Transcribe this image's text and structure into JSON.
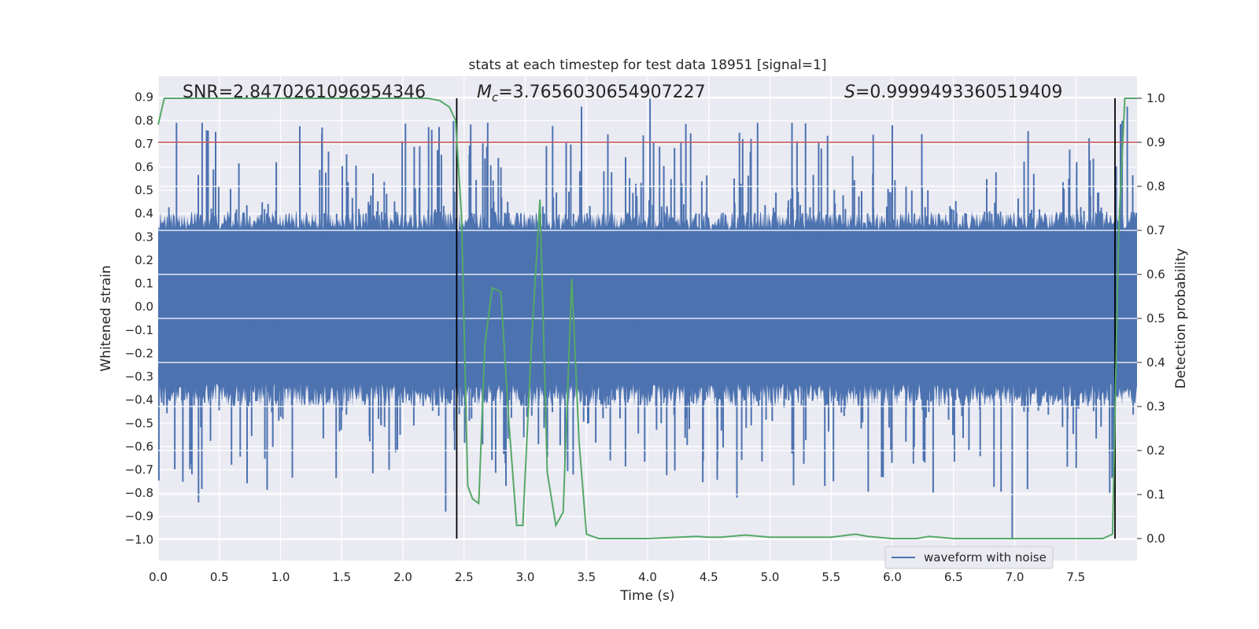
{
  "chart_data": {
    "type": "line",
    "title": "stats at each timestep for test data 18951 [signal=1]",
    "xlabel": "Time (s)",
    "ylabel": "Whitened strain",
    "y2label": "Detection probability",
    "xlim": [
      0,
      8
    ],
    "ylim": [
      -1.09,
      0.99
    ],
    "y2lim": [
      -0.05,
      1.05
    ],
    "grid": true,
    "x_ticks": [
      "0.0",
      "0.5",
      "1.0",
      "1.5",
      "2.0",
      "2.5",
      "3.0",
      "3.5",
      "4.0",
      "4.5",
      "5.0",
      "5.5",
      "6.0",
      "6.5",
      "7.0",
      "7.5"
    ],
    "y_ticks": [
      "0.9",
      "0.8",
      "0.7",
      "0.6",
      "0.5",
      "0.4",
      "0.3",
      "0.2",
      "0.1",
      "0.0",
      "−0.1",
      "−0.2",
      "−0.3",
      "−0.4",
      "−0.5",
      "−0.6",
      "−0.7",
      "−0.8",
      "−0.9",
      "−1.0"
    ],
    "y2_ticks": [
      "0.0",
      "0.1",
      "0.2",
      "0.3",
      "0.4",
      "0.5",
      "0.6",
      "0.7",
      "0.8",
      "0.9",
      "1.0"
    ],
    "annotations": {
      "snr": "SNR=2.8470261096954346",
      "mc_value": "=3.7656030654907227",
      "s_value": "=0.9999493360519409"
    },
    "threshold": {
      "value": 0.9,
      "axis": "right",
      "color": "#c44e52"
    },
    "vlines": [
      2.44,
      7.82
    ],
    "legend": {
      "label": "waveform with noise",
      "location": "bottom-right"
    },
    "colors": {
      "waveform": "#4c72b0",
      "probability": "#55a868",
      "threshold": "#c44e52",
      "vline": "#000000",
      "background": "#eaeaf2"
    },
    "series": [
      {
        "name": "waveform with noise",
        "axis": "left",
        "description": "dense whitened strain noise, approx. uniform amplitude",
        "x_range": [
          0,
          8
        ],
        "y_range": [
          -1.0,
          0.9
        ],
        "typical_band": [
          -0.4,
          0.4
        ],
        "peaks": [
          {
            "x": 0.15,
            "y": 0.79
          },
          {
            "x": 1.34,
            "y": 0.77
          },
          {
            "x": 3.46,
            "y": 0.86
          },
          {
            "x": 4.02,
            "y": 0.9
          },
          {
            "x": 5.18,
            "y": 0.79
          },
          {
            "x": 6.0,
            "y": 0.78
          },
          {
            "x": 7.92,
            "y": 0.86
          }
        ],
        "troughs": [
          {
            "x": 0.33,
            "y": -0.84
          },
          {
            "x": 2.35,
            "y": -0.88
          },
          {
            "x": 4.73,
            "y": -0.82
          },
          {
            "x": 6.98,
            "y": -1.0
          }
        ]
      },
      {
        "name": "detection probability",
        "axis": "right",
        "x": [
          0.0,
          0.05,
          0.1,
          0.5,
          1.0,
          1.5,
          2.0,
          2.2,
          2.3,
          2.38,
          2.43,
          2.48,
          2.53,
          2.57,
          2.62,
          2.67,
          2.73,
          2.8,
          2.87,
          2.93,
          2.98,
          3.05,
          3.12,
          3.18,
          3.25,
          3.31,
          3.38,
          3.44,
          3.5,
          3.6,
          3.7,
          4.0,
          4.4,
          4.5,
          4.6,
          4.8,
          5.0,
          5.5,
          5.7,
          5.8,
          6.0,
          6.2,
          6.3,
          6.5,
          7.0,
          7.5,
          7.72,
          7.8,
          7.85,
          7.9,
          7.95,
          8.0
        ],
        "values": [
          0.94,
          1.0,
          1.0,
          1.0,
          1.0,
          1.0,
          1.0,
          1.0,
          0.995,
          0.98,
          0.95,
          0.73,
          0.12,
          0.09,
          0.08,
          0.44,
          0.57,
          0.56,
          0.25,
          0.03,
          0.03,
          0.44,
          0.77,
          0.15,
          0.03,
          0.06,
          0.59,
          0.22,
          0.01,
          0.0,
          0.0,
          0.0,
          0.005,
          0.003,
          0.003,
          0.008,
          0.003,
          0.003,
          0.01,
          0.005,
          0.0,
          0.0,
          0.005,
          0.0,
          0.0,
          0.0,
          0.0,
          0.01,
          0.7,
          1.0,
          1.0,
          1.0
        ]
      }
    ]
  }
}
